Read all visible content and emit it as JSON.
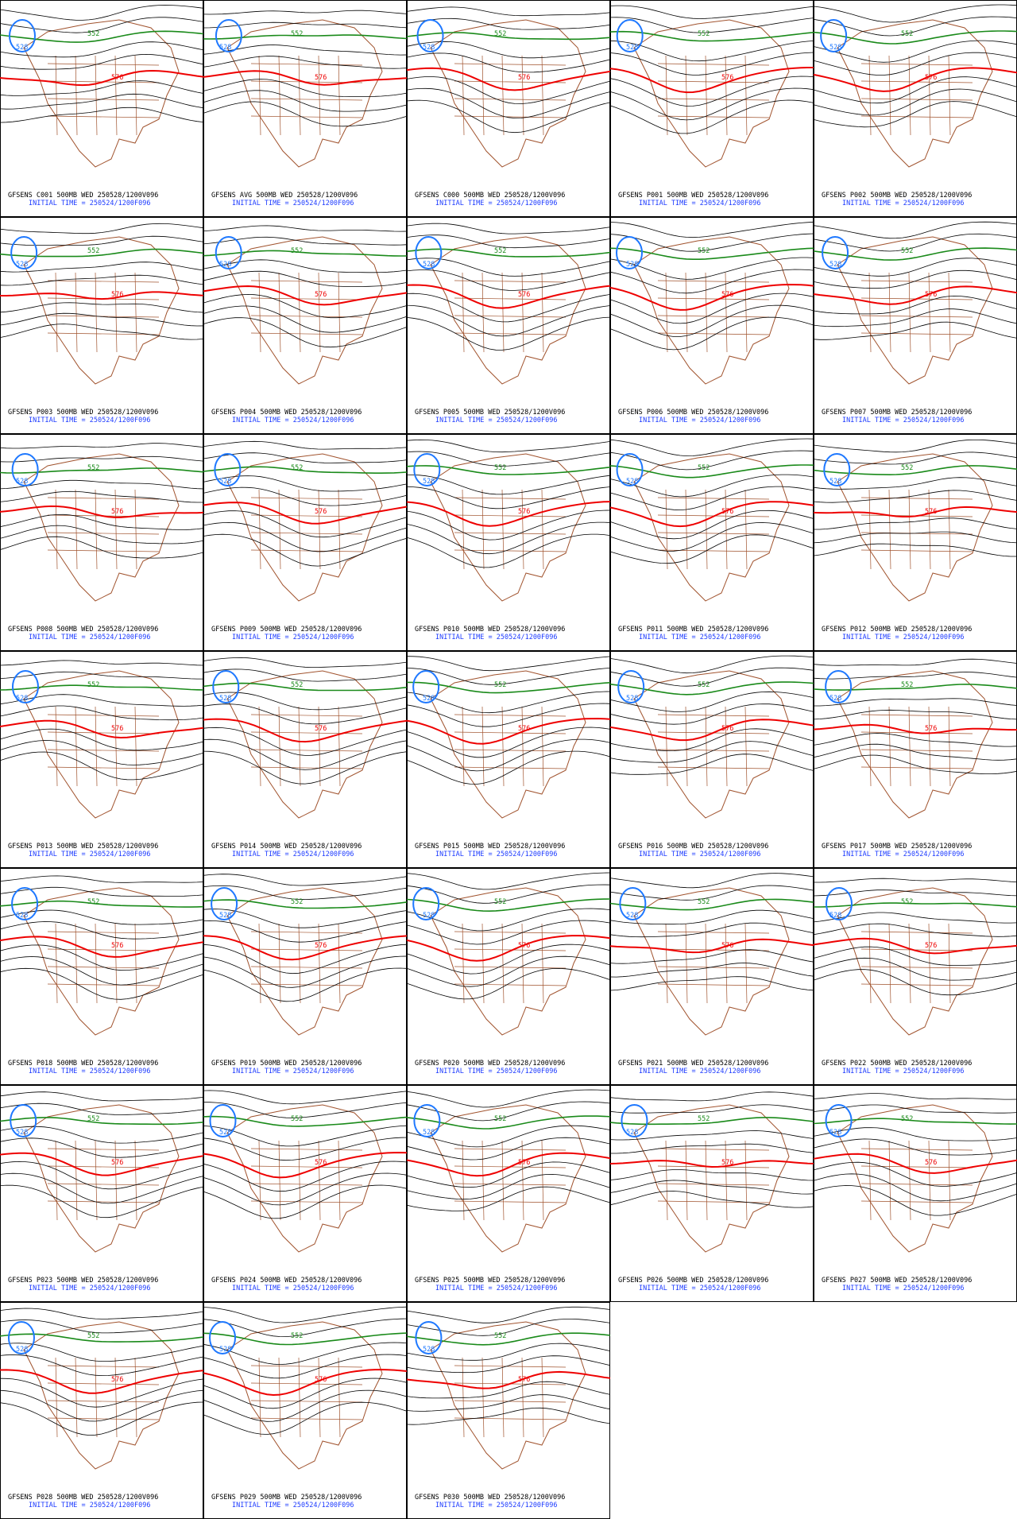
{
  "panels": [
    {
      "title": "GFSENS C001 500MB WED 250528/1200V096",
      "time": "INITIAL TIME = 250524/1200F096",
      "contour_labels": [
        "528",
        "552",
        "576"
      ]
    },
    {
      "title": "GFSENS AVG 500MB WED 250528/1200V096",
      "time": "INITIAL TIME = 250524/1200F096",
      "contour_labels": [
        "528",
        "552",
        "576"
      ]
    },
    {
      "title": "GFSENS C000 500MB WED 250528/1200V096",
      "time": "INITIAL TIME = 250524/1200F096",
      "contour_labels": [
        "528",
        "552",
        "576"
      ]
    },
    {
      "title": "GFSENS P001 500MB WED 250528/1200V096",
      "time": "INITIAL TIME = 250524/1200F096",
      "contour_labels": [
        "528",
        "552",
        "576"
      ]
    },
    {
      "title": "GFSENS P002 500MB WED 250528/1200V096",
      "time": "INITIAL TIME = 250524/1200F096",
      "contour_labels": [
        "528",
        "552",
        "576"
      ]
    },
    {
      "title": "GFSENS P003 500MB WED 250528/1200V096",
      "time": "INITIAL TIME = 250524/1200F096",
      "contour_labels": [
        "528",
        "552",
        "576"
      ]
    },
    {
      "title": "GFSENS P004 500MB WED 250528/1200V096",
      "time": "INITIAL TIME = 250524/1200F096",
      "contour_labels": [
        "528",
        "552",
        "576"
      ]
    },
    {
      "title": "GFSENS P005 500MB WED 250528/1200V096",
      "time": "INITIAL TIME = 250524/1200F096",
      "contour_labels": [
        "528",
        "552",
        "576"
      ]
    },
    {
      "title": "GFSENS P006 500MB WED 250528/1200V096",
      "time": "INITIAL TIME = 250524/1200F096",
      "contour_labels": [
        "528",
        "552",
        "576"
      ]
    },
    {
      "title": "GFSENS P007 500MB WED 250528/1200V096",
      "time": "INITIAL TIME = 250524/1200F096",
      "contour_labels": [
        "528",
        "552",
        "576"
      ]
    },
    {
      "title": "GFSENS P008 500MB WED 250528/1200V096",
      "time": "INITIAL TIME = 250524/1200F096",
      "contour_labels": [
        "528",
        "552",
        "576"
      ]
    },
    {
      "title": "GFSENS P009 500MB WED 250528/1200V096",
      "time": "INITIAL TIME = 250524/1200F096",
      "contour_labels": [
        "528",
        "552",
        "576"
      ]
    },
    {
      "title": "GFSENS P010 500MB WED 250528/1200V096",
      "time": "INITIAL TIME = 250524/1200F096",
      "contour_labels": [
        "528",
        "552",
        "576"
      ]
    },
    {
      "title": "GFSENS P011 500MB WED 250528/1200V096",
      "time": "INITIAL TIME = 250524/1200F096",
      "contour_labels": [
        "528",
        "552",
        "576"
      ]
    },
    {
      "title": "GFSENS P012 500MB WED 250528/1200V096",
      "time": "INITIAL TIME = 250524/1200F096",
      "contour_labels": [
        "528",
        "552",
        "576"
      ]
    },
    {
      "title": "GFSENS P013 500MB WED 250528/1200V096",
      "time": "INITIAL TIME = 250524/1200F096",
      "contour_labels": [
        "528",
        "552",
        "576"
      ]
    },
    {
      "title": "GFSENS P014 500MB WED 250528/1200V096",
      "time": "INITIAL TIME = 250524/1200F096",
      "contour_labels": [
        "528",
        "552",
        "576"
      ]
    },
    {
      "title": "GFSENS P015 500MB WED 250528/1200V096",
      "time": "INITIAL TIME = 250524/1200F096",
      "contour_labels": [
        "528",
        "552",
        "576"
      ]
    },
    {
      "title": "GFSENS P016 500MB WED 250528/1200V096",
      "time": "INITIAL TIME = 250524/1200F096",
      "contour_labels": [
        "528",
        "552",
        "576"
      ]
    },
    {
      "title": "GFSENS P017 500MB WED 250528/1200V096",
      "time": "INITIAL TIME = 250524/1200F096",
      "contour_labels": [
        "528",
        "552",
        "576"
      ]
    },
    {
      "title": "GFSENS P018 500MB WED 250528/1200V096",
      "time": "INITIAL TIME = 250524/1200F096",
      "contour_labels": [
        "528",
        "552",
        "576"
      ]
    },
    {
      "title": "GFSENS P019 500MB WED 250528/1200V096",
      "time": "INITIAL TIME = 250524/1200F096",
      "contour_labels": [
        "528",
        "552",
        "576"
      ]
    },
    {
      "title": "GFSENS P020 500MB WED 250528/1200V096",
      "time": "INITIAL TIME = 250524/1200F096",
      "contour_labels": [
        "528",
        "552",
        "576"
      ]
    },
    {
      "title": "GFSENS P021 500MB WED 250528/1200V096",
      "time": "INITIAL TIME = 250524/1200F096",
      "contour_labels": [
        "528",
        "552",
        "576"
      ]
    },
    {
      "title": "GFSENS P022 500MB WED 250528/1200V096",
      "time": "INITIAL TIME = 250524/1200F096",
      "contour_labels": [
        "528",
        "552",
        "576"
      ]
    },
    {
      "title": "GFSENS P023 500MB WED 250528/1200V096",
      "time": "INITIAL TIME = 250524/1200F096",
      "contour_labels": [
        "528",
        "552",
        "576"
      ]
    },
    {
      "title": "GFSENS P024 500MB WED 250528/1200V096",
      "time": "INITIAL TIME = 250524/1200F096",
      "contour_labels": [
        "528",
        "552",
        "576"
      ]
    },
    {
      "title": "GFSENS P025 500MB WED 250528/1200V096",
      "time": "INITIAL TIME = 250524/1200F096",
      "contour_labels": [
        "528",
        "552",
        "576"
      ]
    },
    {
      "title": "GFSENS P026 500MB WED 250528/1200V096",
      "time": "INITIAL TIME = 250524/1200F096",
      "contour_labels": [
        "528",
        "552",
        "576"
      ]
    },
    {
      "title": "GFSENS P027 500MB WED 250528/1200V096",
      "time": "INITIAL TIME = 250524/1200F096",
      "contour_labels": [
        "528",
        "552",
        "576"
      ]
    },
    {
      "title": "GFSENS P028 500MB WED 250528/1200V096",
      "time": "INITIAL TIME = 250524/1200F096",
      "contour_labels": [
        "528",
        "552",
        "576"
      ]
    },
    {
      "title": "GFSENS P029 500MB WED 250528/1200V096",
      "time": "INITIAL TIME = 250524/1200F096",
      "contour_labels": [
        "528",
        "552",
        "576"
      ]
    },
    {
      "title": "GFSENS P030 500MB WED 250528/1200V096",
      "time": "INITIAL TIME = 250524/1200F096",
      "contour_labels": [
        "528",
        "552",
        "576"
      ]
    }
  ]
}
